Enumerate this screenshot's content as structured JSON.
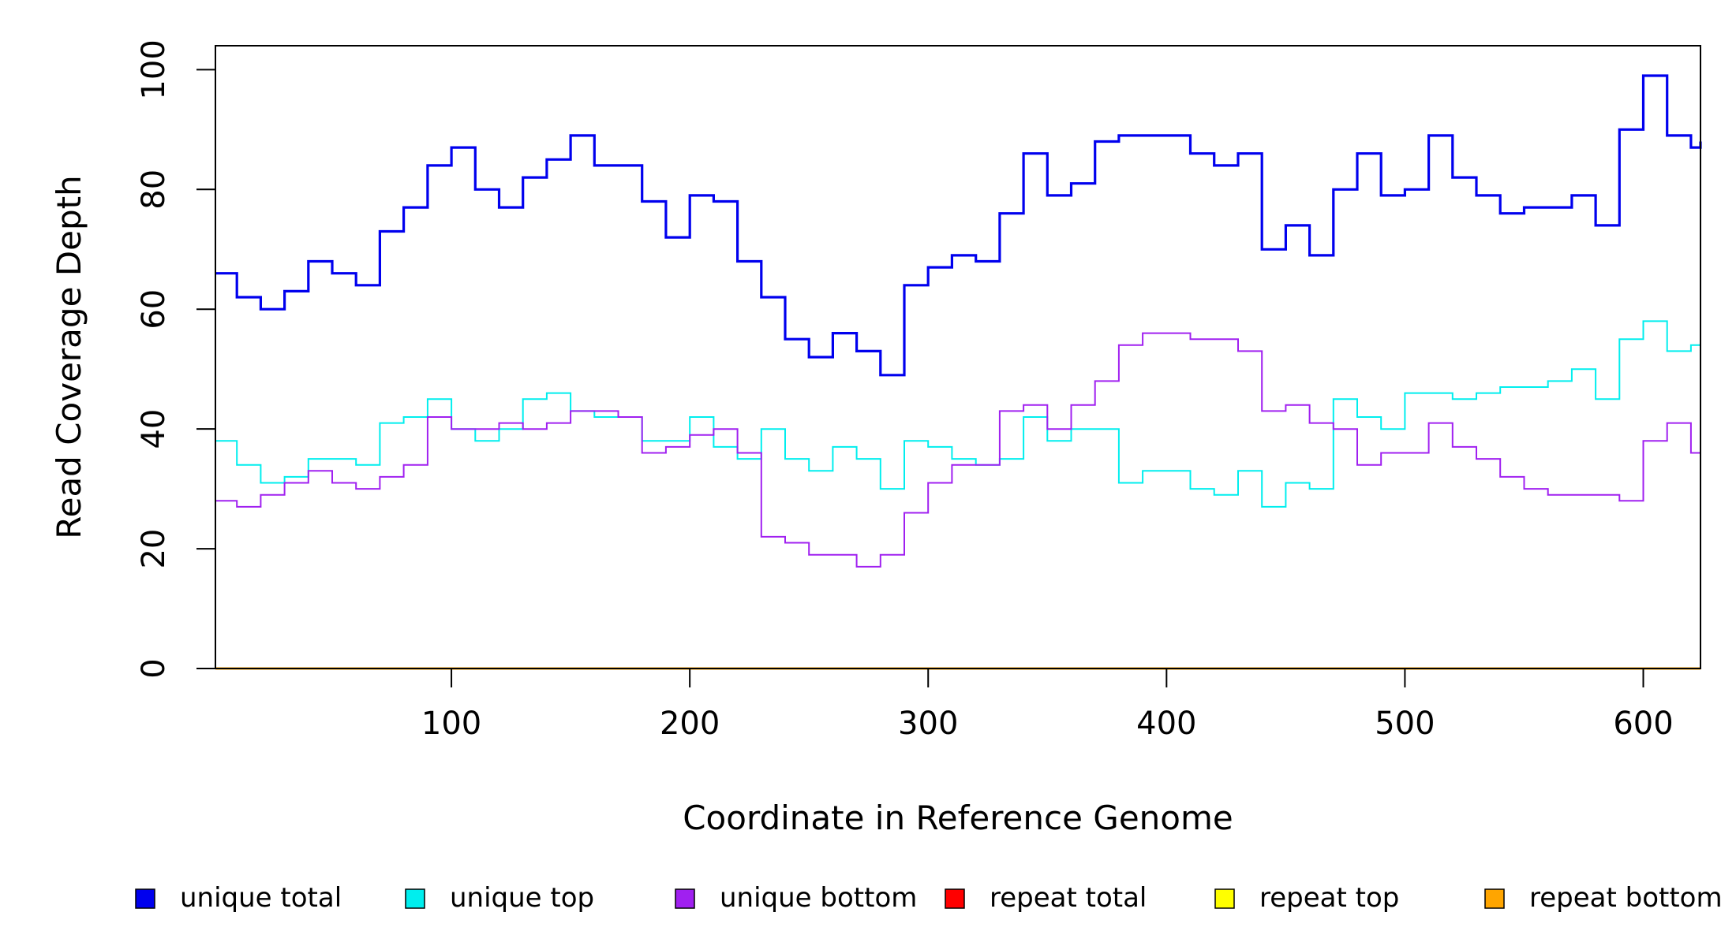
{
  "chart_data": {
    "type": "line",
    "step": true,
    "title": "",
    "xlabel": "Coordinate in Reference Genome",
    "ylabel": "Read Coverage Depth",
    "xlim": [
      1,
      624
    ],
    "ylim": [
      0,
      104
    ],
    "xticks": [
      100,
      200,
      300,
      400,
      500,
      600
    ],
    "yticks": [
      0,
      20,
      40,
      60,
      80,
      100
    ],
    "grid": false,
    "legend_position": "bottom",
    "x": [
      1,
      10,
      20,
      30,
      40,
      50,
      60,
      70,
      80,
      90,
      100,
      110,
      120,
      130,
      140,
      150,
      160,
      170,
      180,
      190,
      200,
      210,
      220,
      230,
      240,
      250,
      260,
      270,
      280,
      290,
      300,
      310,
      320,
      330,
      340,
      350,
      360,
      370,
      380,
      390,
      400,
      410,
      420,
      430,
      440,
      450,
      460,
      470,
      480,
      490,
      500,
      510,
      520,
      530,
      540,
      550,
      560,
      570,
      580,
      590,
      600,
      610,
      620,
      624
    ],
    "series": [
      {
        "name": "unique total",
        "color": "#0000ee",
        "values": [
          66,
          62,
          60,
          63,
          68,
          66,
          64,
          73,
          77,
          84,
          87,
          80,
          77,
          82,
          85,
          89,
          84,
          84,
          78,
          72,
          79,
          78,
          68,
          62,
          55,
          52,
          56,
          53,
          49,
          64,
          67,
          69,
          68,
          76,
          86,
          79,
          81,
          88,
          89,
          89,
          89,
          86,
          84,
          86,
          70,
          74,
          69,
          80,
          86,
          79,
          80,
          89,
          82,
          79,
          76,
          77,
          77,
          79,
          74,
          90,
          99,
          89,
          87,
          88
        ]
      },
      {
        "name": "unique top",
        "color": "#00eeee",
        "values": [
          38,
          34,
          31,
          32,
          35,
          35,
          34,
          41,
          42,
          45,
          40,
          38,
          40,
          45,
          46,
          43,
          42,
          42,
          38,
          38,
          42,
          37,
          35,
          40,
          35,
          33,
          37,
          35,
          30,
          38,
          37,
          35,
          34,
          35,
          42,
          38,
          40,
          40,
          31,
          33,
          33,
          30,
          29,
          33,
          27,
          31,
          30,
          45,
          42,
          40,
          46,
          46,
          45,
          46,
          47,
          47,
          48,
          50,
          45,
          55,
          58,
          53,
          54,
          49
        ]
      },
      {
        "name": "unique bottom",
        "color": "#a020f0",
        "values": [
          28,
          27,
          29,
          31,
          33,
          31,
          30,
          32,
          34,
          42,
          40,
          40,
          41,
          40,
          41,
          43,
          43,
          42,
          36,
          37,
          39,
          40,
          36,
          22,
          21,
          19,
          19,
          17,
          19,
          26,
          31,
          34,
          34,
          43,
          44,
          40,
          44,
          48,
          54,
          56,
          56,
          55,
          55,
          53,
          43,
          44,
          41,
          40,
          34,
          36,
          36,
          41,
          37,
          35,
          32,
          30,
          29,
          29,
          29,
          28,
          38,
          41,
          36,
          39
        ]
      },
      {
        "name": "repeat total",
        "color": "#ff0000",
        "values": [
          0,
          0,
          0,
          0,
          0,
          0,
          0,
          0,
          0,
          0,
          0,
          0,
          0,
          0,
          0,
          0,
          0,
          0,
          0,
          0,
          0,
          0,
          0,
          0,
          0,
          0,
          0,
          0,
          0,
          0,
          0,
          0,
          0,
          0,
          0,
          0,
          0,
          0,
          0,
          0,
          0,
          0,
          0,
          0,
          0,
          0,
          0,
          0,
          0,
          0,
          0,
          0,
          0,
          0,
          0,
          0,
          0,
          0,
          0,
          0,
          0,
          0,
          0,
          0
        ]
      },
      {
        "name": "repeat top",
        "color": "#ffff00",
        "values": [
          0,
          0,
          0,
          0,
          0,
          0,
          0,
          0,
          0,
          0,
          0,
          0,
          0,
          0,
          0,
          0,
          0,
          0,
          0,
          0,
          0,
          0,
          0,
          0,
          0,
          0,
          0,
          0,
          0,
          0,
          0,
          0,
          0,
          0,
          0,
          0,
          0,
          0,
          0,
          0,
          0,
          0,
          0,
          0,
          0,
          0,
          0,
          0,
          0,
          0,
          0,
          0,
          0,
          0,
          0,
          0,
          0,
          0,
          0,
          0,
          0,
          0,
          0,
          0
        ]
      },
      {
        "name": "repeat bottom",
        "color": "#ffa500",
        "values": [
          0,
          0,
          0,
          0,
          0,
          0,
          0,
          0,
          0,
          0,
          0,
          0,
          0,
          0,
          0,
          0,
          0,
          0,
          0,
          0,
          0,
          0,
          0,
          0,
          0,
          0,
          0,
          0,
          0,
          0,
          0,
          0,
          0,
          0,
          0,
          0,
          0,
          0,
          0,
          0,
          0,
          0,
          0,
          0,
          0,
          0,
          0,
          0,
          0,
          0,
          0,
          0,
          0,
          0,
          0,
          0,
          0,
          0,
          0,
          0,
          0,
          0,
          0,
          0
        ]
      }
    ]
  }
}
